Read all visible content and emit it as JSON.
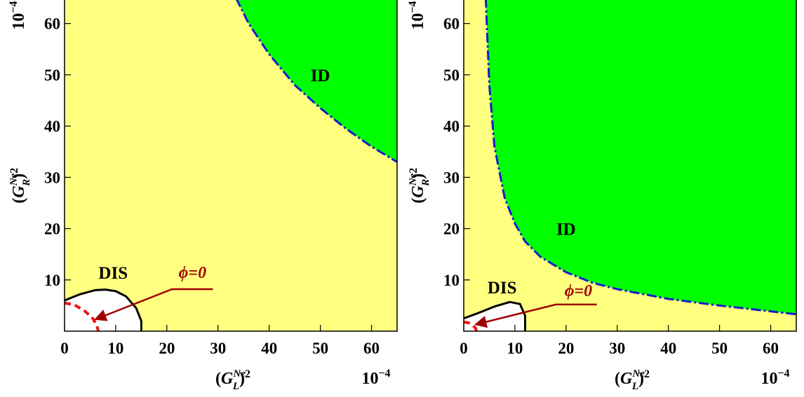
{
  "chart_data": [
    {
      "type": "region",
      "background": "#ffff80",
      "xlim": [
        0,
        65
      ],
      "ylim": [
        0,
        65
      ],
      "xticks": [
        0,
        10,
        20,
        30,
        40,
        50,
        60
      ],
      "yticks": [
        10,
        20,
        30,
        40,
        50,
        60
      ],
      "xlabel": {
        "open": "(",
        "symbol": "G",
        "superscript": "Ne",
        "subscript": "L",
        "close": ")",
        "power": "2"
      },
      "ylabel": {
        "open": "(",
        "symbol": "G",
        "superscript": "Ne",
        "subscript": "R",
        "close": ")",
        "power": "2"
      },
      "x_scale_label": {
        "base": "10",
        "exponent": "−4"
      },
      "y_scale_label": {
        "base": "10",
        "exponent": "−4"
      },
      "regions": [
        {
          "name": "ID",
          "color": "#00ff00",
          "boundary_color": "#1a1acc",
          "x": [
            33.5,
            36,
            40,
            45,
            50,
            55,
            60,
            65
          ],
          "y": [
            65,
            60,
            54,
            48,
            43.5,
            39.5,
            36,
            33
          ]
        },
        {
          "name": "DIS",
          "color": "#ffffff",
          "boundary_color": "#000000",
          "x": [
            0,
            3,
            6,
            8,
            10,
            12,
            14,
            15,
            15
          ],
          "y": [
            6,
            7.2,
            8,
            8.1,
            7.8,
            6.8,
            4.5,
            2,
            0
          ]
        }
      ],
      "curves": [
        {
          "name": "ϕ=0",
          "color": "#ee1111",
          "x": [
            0,
            2,
            4,
            5.5,
            6.3,
            6.6
          ],
          "y": [
            5.5,
            5.1,
            3.9,
            2.5,
            1.2,
            0
          ]
        }
      ]
    },
    {
      "type": "region",
      "background": "#ffff80",
      "xlim": [
        0,
        65
      ],
      "ylim": [
        0,
        65
      ],
      "xticks": [
        0,
        10,
        20,
        30,
        40,
        50,
        60
      ],
      "yticks": [
        10,
        20,
        30,
        40,
        50,
        60
      ],
      "xlabel": {
        "open": "(",
        "symbol": "G",
        "superscript": "Ne",
        "subscript": "L",
        "close": ")",
        "power": "2"
      },
      "ylabel": {
        "open": "(",
        "symbol": "G",
        "superscript": "Ne",
        "subscript": "R",
        "close": ")",
        "power": "2"
      },
      "x_scale_label": {
        "base": "10",
        "exponent": "−4"
      },
      "y_scale_label": {
        "base": "10",
        "exponent": "−4"
      },
      "regions": [
        {
          "name": "ID",
          "color": "#00ff00",
          "boundary_color": "#1a1acc",
          "x": [
            4.3,
            5,
            6,
            8,
            10,
            12,
            15,
            20,
            25,
            30,
            40,
            50,
            65
          ],
          "y": [
            65,
            48,
            36,
            26,
            21,
            17.5,
            14.5,
            11.5,
            9.5,
            8.2,
            6.3,
            5,
            3.3
          ]
        },
        {
          "name": "DIS",
          "color": "#ffffff",
          "boundary_color": "#000000",
          "x": [
            0,
            3,
            6,
            9,
            11,
            12,
            12
          ],
          "y": [
            2.5,
            3.6,
            4.8,
            5.7,
            5.3,
            3,
            0
          ]
        }
      ],
      "curves": [
        {
          "name": "ϕ=0",
          "color": "#ee1111",
          "x": [
            0,
            1,
            1.8,
            2.3,
            2.5
          ],
          "y": [
            1.8,
            1.6,
            1.1,
            0.6,
            0
          ]
        }
      ]
    }
  ]
}
